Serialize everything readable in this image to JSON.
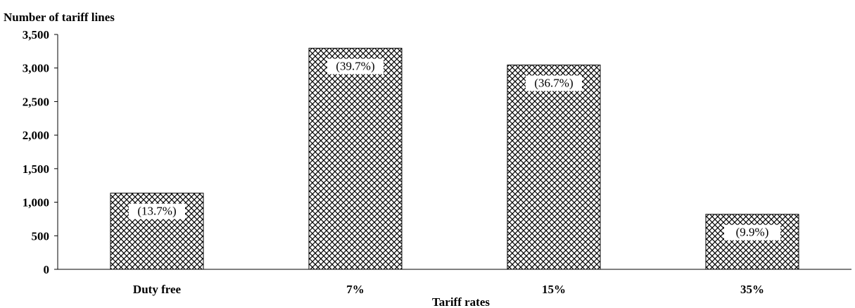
{
  "chart_data": {
    "type": "bar",
    "ylabel": "Number of tariff lines",
    "xlabel": "Tariff rates",
    "categories": [
      "Duty free",
      "7%",
      "15%",
      "35%"
    ],
    "values": [
      1135,
      3295,
      3045,
      820
    ],
    "data_labels": [
      "(13.7%)",
      "(39.7%)",
      "(36.7%)",
      "(9.9%)"
    ],
    "ylim": [
      0,
      3500
    ],
    "yticks": [
      0,
      500,
      1000,
      1500,
      2000,
      2500,
      3000,
      3500
    ],
    "ytick_labels": [
      "0",
      "500",
      "1,000",
      "1,500",
      "2,000",
      "2,500",
      "3,000",
      "3,500"
    ],
    "grid": false,
    "legend": "none",
    "colors": {
      "bar_fill": "#ffffff",
      "pattern": "#000000",
      "axis": "#000000"
    },
    "pattern": "crosshatch"
  }
}
